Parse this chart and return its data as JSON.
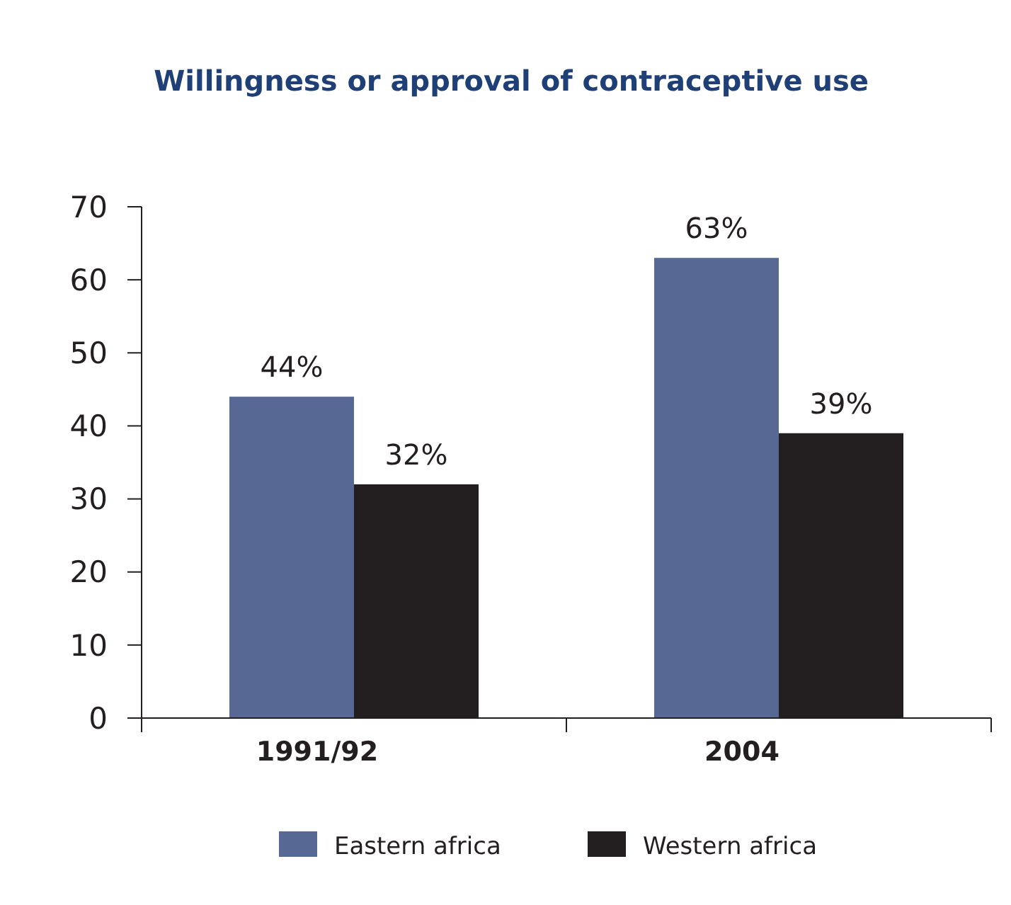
{
  "chart_data": {
    "type": "bar",
    "title": "Willingness or approval of contraceptive use",
    "categories": [
      "1991/92",
      "2004"
    ],
    "series": [
      {
        "name": "Eastern africa",
        "color": "#566893",
        "values": [
          44,
          63
        ],
        "value_labels": [
          "44%",
          "63%"
        ]
      },
      {
        "name": "Western africa",
        "color": "#231f20",
        "values": [
          32,
          39
        ],
        "value_labels": [
          "32%",
          "39%"
        ]
      }
    ],
    "ylim": [
      0,
      70
    ],
    "yticks": [
      0,
      10,
      20,
      30,
      40,
      50,
      60,
      70
    ],
    "grid": false,
    "legend": "bottom"
  }
}
